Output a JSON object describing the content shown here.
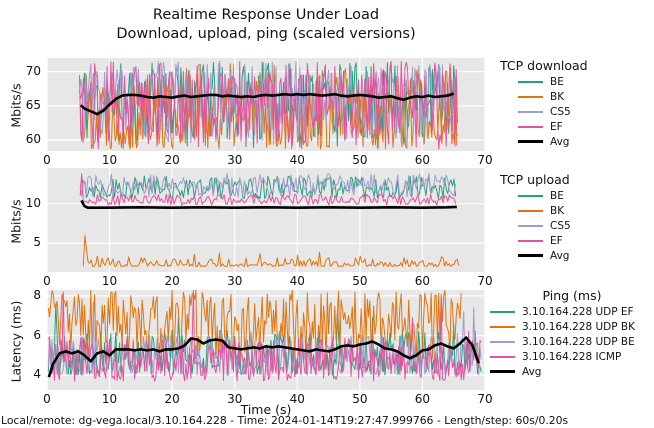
{
  "title_line1": "Realtime Response Under Load",
  "title_line2": "Download, upload, ping (scaled versions)",
  "xlabel": "Time (s)",
  "footer": "Local/remote: dg-vega.local/3.10.164.228 - Time: 2024-01-14T19:27:47.999766 - Length/step: 60s/0.20s",
  "plot_bg": "#e7e7e7",
  "grid_color": "#ffffff",
  "text_color": "#131313",
  "chart_data": [
    {
      "type": "line",
      "legend_title": "TCP download",
      "ylabel": "Mbits/s",
      "xlim": [
        0,
        70
      ],
      "ylim": [
        58.4,
        72.0
      ],
      "xticks": [
        0,
        10,
        20,
        30,
        40,
        50,
        60,
        70
      ],
      "yticks": [
        60,
        65,
        70
      ],
      "grid": true,
      "legend_position": "right",
      "series": [
        {
          "name": "BE",
          "color": "#26a17e",
          "line_width": 1,
          "noise": {
            "seed": 11,
            "x_start": 5.2,
            "x_end": 65.6,
            "step": 0.2,
            "min": 58.9,
            "max": 71.4,
            "pow": 0.85
          }
        },
        {
          "name": "BK",
          "color": "#e2740e",
          "line_width": 1,
          "noise": {
            "seed": 22,
            "x_start": 5.3,
            "x_end": 65.5,
            "step": 0.2,
            "min": 58.7,
            "max": 71.2,
            "pow": 1.35
          }
        },
        {
          "name": "CS5",
          "color": "#9f9dcb",
          "line_width": 1,
          "noise": {
            "seed": 33,
            "x_start": 5.2,
            "x_end": 65.5,
            "step": 0.2,
            "min": 59.2,
            "max": 71.5,
            "pow": 0.8
          }
        },
        {
          "name": "EF",
          "color": "#e6529f",
          "line_width": 1,
          "noise": {
            "seed": 44,
            "x_start": 5.2,
            "x_end": 65.6,
            "step": 0.2,
            "min": 58.6,
            "max": 71.5,
            "pow": 0.95
          }
        },
        {
          "name": "Avg",
          "color": "#000000",
          "line_width": 2.6,
          "points": [
            [
              5.4,
              65.1
            ],
            [
              6,
              64.6
            ],
            [
              7,
              64.2
            ],
            [
              8,
              63.8
            ],
            [
              9,
              64.3
            ],
            [
              10,
              65.2
            ],
            [
              11,
              66.0
            ],
            [
              12,
              66.5
            ],
            [
              13,
              66.6
            ],
            [
              14,
              66.6
            ],
            [
              15,
              66.5
            ],
            [
              16,
              66.3
            ],
            [
              17,
              66.2
            ],
            [
              18,
              66.4
            ],
            [
              19,
              66.3
            ],
            [
              20,
              66.2
            ],
            [
              21,
              66.4
            ],
            [
              22,
              66.5
            ],
            [
              23,
              66.3
            ],
            [
              24,
              66.4
            ],
            [
              25,
              66.5
            ],
            [
              26,
              66.6
            ],
            [
              27,
              66.6
            ],
            [
              28,
              66.4
            ],
            [
              29,
              66.5
            ],
            [
              30,
              66.4
            ],
            [
              31,
              66.3
            ],
            [
              32,
              66.4
            ],
            [
              33,
              66.3
            ],
            [
              34,
              66.5
            ],
            [
              35,
              66.6
            ],
            [
              36,
              66.5
            ],
            [
              37,
              66.6
            ],
            [
              38,
              66.7
            ],
            [
              39,
              66.6
            ],
            [
              40,
              66.7
            ],
            [
              41,
              66.6
            ],
            [
              42,
              66.7
            ],
            [
              43,
              66.6
            ],
            [
              44,
              66.5
            ],
            [
              45,
              66.6
            ],
            [
              46,
              66.7
            ],
            [
              47,
              66.5
            ],
            [
              48,
              66.4
            ],
            [
              49,
              66.5
            ],
            [
              50,
              66.6
            ],
            [
              51,
              66.5
            ],
            [
              52,
              66.4
            ],
            [
              53,
              66.2
            ],
            [
              54,
              66.3
            ],
            [
              55,
              66.4
            ],
            [
              56,
              66.1
            ],
            [
              57,
              65.9
            ],
            [
              58,
              66.2
            ],
            [
              59,
              66.4
            ],
            [
              60,
              66.3
            ],
            [
              61,
              66.5
            ],
            [
              62,
              66.3
            ],
            [
              63,
              66.4
            ],
            [
              64,
              66.5
            ],
            [
              65,
              66.8
            ]
          ]
        }
      ]
    },
    {
      "type": "line",
      "legend_title": "TCP upload",
      "ylabel": "Mbits/s",
      "xlim": [
        0,
        70
      ],
      "ylim": [
        1.4,
        14.5
      ],
      "xticks": [
        0,
        10,
        20,
        30,
        40,
        50,
        60,
        70
      ],
      "yticks": [
        5,
        10
      ],
      "grid": true,
      "legend_position": "right",
      "series": [
        {
          "name": "BE",
          "color": "#26a17e",
          "line_width": 1,
          "noise": {
            "seed": 55,
            "x_start": 5.3,
            "x_end": 65.5,
            "step": 0.25,
            "min": 10.6,
            "max": 13.5,
            "pow": 1
          },
          "spikes": [
            [
              65.5,
              7.4
            ]
          ]
        },
        {
          "name": "BK",
          "color": "#e2740e",
          "line_width": 1,
          "noise": {
            "seed": 66,
            "x_start": 5.8,
            "x_end": 66.0,
            "step": 0.25,
            "min": 2.1,
            "max": 3.2,
            "pow": 2
          },
          "spikes": [
            [
              6.0,
              6.0
            ],
            [
              6.3,
              4.4
            ],
            [
              8,
              3.4
            ],
            [
              13,
              3.3
            ],
            [
              23.5,
              3.6
            ],
            [
              27.5,
              3.8
            ],
            [
              34,
              3.7
            ],
            [
              40,
              3.5
            ],
            [
              43.5,
              3.9
            ],
            [
              50,
              3.4
            ],
            [
              57,
              3.2
            ],
            [
              63,
              3.3
            ]
          ]
        },
        {
          "name": "CS5",
          "color": "#9f9dcb",
          "line_width": 1,
          "noise": {
            "seed": 77,
            "x_start": 5.3,
            "x_end": 65.4,
            "step": 0.25,
            "min": 10.8,
            "max": 13.8,
            "pow": 0.9
          }
        },
        {
          "name": "EF",
          "color": "#e6529f",
          "line_width": 1,
          "noise": {
            "seed": 88,
            "x_start": 5.3,
            "x_end": 65.5,
            "step": 0.25,
            "min": 9.8,
            "max": 11.2,
            "pow": 1
          },
          "spikes": [
            [
              5.55,
              13.8
            ]
          ]
        },
        {
          "name": "Avg",
          "color": "#000000",
          "line_width": 2.6,
          "points": [
            [
              5.5,
              10.4
            ],
            [
              6,
              9.7
            ],
            [
              6.5,
              9.5
            ],
            [
              8,
              9.5
            ],
            [
              10,
              9.5
            ],
            [
              15,
              9.55
            ],
            [
              20,
              9.5
            ],
            [
              25,
              9.55
            ],
            [
              30,
              9.5
            ],
            [
              35,
              9.55
            ],
            [
              40,
              9.5
            ],
            [
              45,
              9.55
            ],
            [
              50,
              9.5
            ],
            [
              55,
              9.55
            ],
            [
              60,
              9.5
            ],
            [
              64,
              9.55
            ],
            [
              65.5,
              9.6
            ]
          ]
        }
      ]
    },
    {
      "type": "line",
      "legend_title": "Ping (ms)",
      "ylabel": "Latency (ms)",
      "xlim": [
        0,
        70
      ],
      "ylim": [
        3.25,
        8.3
      ],
      "xticks": [
        0,
        10,
        20,
        30,
        40,
        50,
        60,
        70
      ],
      "yticks": [
        4,
        6,
        8
      ],
      "grid": true,
      "legend_position": "right",
      "series": [
        {
          "name": "3.10.164.228 UDP EF",
          "color": "#26a17e",
          "line_width": 1,
          "noise": {
            "seed": 101,
            "x_start": 0.2,
            "x_end": 69.4,
            "step": 0.2,
            "min": 4.0,
            "max": 6.3,
            "pow": 1.3
          },
          "spikes": [
            [
              1.4,
              7.6
            ],
            [
              21,
              6.9
            ],
            [
              46.5,
              7.1
            ],
            [
              52,
              6.9
            ],
            [
              65,
              6.6
            ]
          ]
        },
        {
          "name": "3.10.164.228 UDP BK",
          "color": "#e2740e",
          "line_width": 1,
          "noise": {
            "seed": 102,
            "x_start": 0.2,
            "x_end": 66.2,
            "step": 0.2,
            "min": 4.6,
            "max": 8.3,
            "pow": 0.75
          }
        },
        {
          "name": "3.10.164.228 UDP BE",
          "color": "#9f9dcb",
          "line_width": 1,
          "noise": {
            "seed": 103,
            "x_start": 0.2,
            "x_end": 69.4,
            "step": 0.2,
            "min": 4.0,
            "max": 6.1,
            "pow": 1.3
          },
          "spikes": [
            [
              7.4,
              7.7
            ],
            [
              66.6,
              7.2
            ],
            [
              68.2,
              7.4
            ]
          ]
        },
        {
          "name": "3.10.164.228 ICMP",
          "color": "#e6529f",
          "line_width": 1,
          "noise": {
            "seed": 104,
            "x_start": 0.2,
            "x_end": 69.4,
            "step": 0.2,
            "min": 3.7,
            "max": 5.9,
            "pow": 1.2
          },
          "spikes": [
            [
              2.6,
              8.2
            ],
            [
              23.4,
              8.3
            ],
            [
              58.4,
              6.9
            ],
            [
              63,
              7.9
            ],
            [
              67.5,
              6.2
            ]
          ]
        },
        {
          "name": "Avg",
          "color": "#000000",
          "line_width": 2.6,
          "points": [
            [
              0.3,
              3.9
            ],
            [
              1,
              4.6
            ],
            [
              2,
              5.1
            ],
            [
              3,
              5.2
            ],
            [
              4,
              5.1
            ],
            [
              5,
              5.2
            ],
            [
              6,
              5.0
            ],
            [
              7,
              4.7
            ],
            [
              8,
              5.1
            ],
            [
              9,
              5.2
            ],
            [
              10,
              5.0
            ],
            [
              11,
              5.3
            ],
            [
              12,
              5.3
            ],
            [
              13,
              5.3
            ],
            [
              14,
              5.25
            ],
            [
              15,
              5.3
            ],
            [
              16,
              5.25
            ],
            [
              17,
              5.3
            ],
            [
              18,
              5.2
            ],
            [
              19,
              5.3
            ],
            [
              20,
              5.3
            ],
            [
              21,
              5.35
            ],
            [
              22,
              5.5
            ],
            [
              23,
              5.85
            ],
            [
              24,
              5.8
            ],
            [
              25,
              5.6
            ],
            [
              26,
              5.75
            ],
            [
              27,
              5.8
            ],
            [
              28,
              5.75
            ],
            [
              29,
              5.4
            ],
            [
              30,
              5.35
            ],
            [
              31,
              5.3
            ],
            [
              32,
              5.35
            ],
            [
              33,
              5.4
            ],
            [
              34,
              5.35
            ],
            [
              35,
              5.45
            ],
            [
              36,
              5.4
            ],
            [
              37,
              5.45
            ],
            [
              38,
              5.4
            ],
            [
              39,
              5.35
            ],
            [
              40,
              5.3
            ],
            [
              41,
              5.25
            ],
            [
              42,
              5.2
            ],
            [
              43,
              5.3
            ],
            [
              44,
              5.25
            ],
            [
              45,
              5.2
            ],
            [
              46,
              5.3
            ],
            [
              47,
              5.45
            ],
            [
              48,
              5.5
            ],
            [
              49,
              5.45
            ],
            [
              50,
              5.55
            ],
            [
              51,
              5.6
            ],
            [
              52,
              5.7
            ],
            [
              53,
              5.55
            ],
            [
              54,
              5.35
            ],
            [
              55,
              5.3
            ],
            [
              56,
              5.2
            ],
            [
              57,
              5.0
            ],
            [
              58,
              4.85
            ],
            [
              59,
              5.0
            ],
            [
              60,
              5.25
            ],
            [
              61,
              5.3
            ],
            [
              62,
              5.5
            ],
            [
              63,
              5.6
            ],
            [
              64,
              5.45
            ],
            [
              65,
              5.35
            ],
            [
              66,
              5.6
            ],
            [
              67,
              5.9
            ],
            [
              68,
              5.5
            ],
            [
              69,
              4.6
            ]
          ]
        }
      ]
    }
  ]
}
